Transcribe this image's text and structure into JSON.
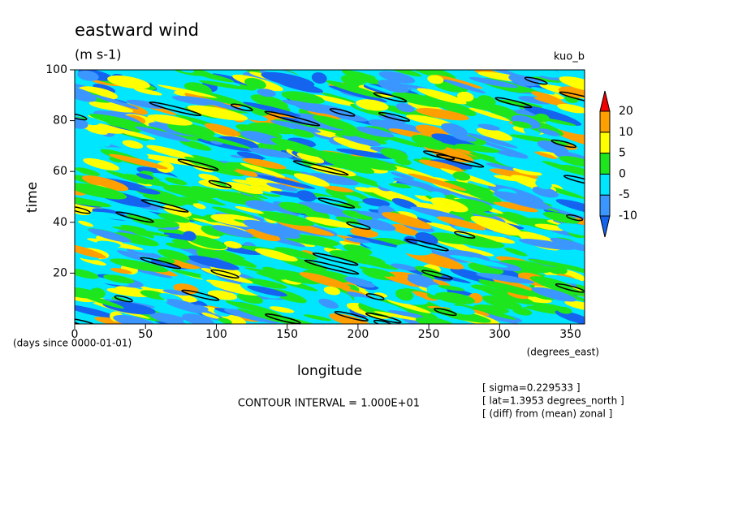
{
  "chart_data": {
    "type": "contour",
    "title": "eastward wind",
    "subtitle": "(m s-1)",
    "label_top_right": "kuo_b",
    "x_label": "longitude",
    "y_label": "time",
    "x_units": "(degrees_east)",
    "y_units": "(days since 0000-01-01)",
    "xlim": [
      0,
      360
    ],
    "xticks": [
      0,
      50,
      100,
      150,
      200,
      250,
      300,
      350
    ],
    "ylim": [
      0,
      100
    ],
    "yticks": [
      20,
      40,
      60,
      80,
      100
    ],
    "levels": [
      -10,
      -5,
      0,
      5,
      10,
      20
    ],
    "colors": [
      "#1464f0",
      "#3c96ff",
      "#00e6ff",
      "#1ee61e",
      "#ffff00",
      "#ffa000",
      "#f00000"
    ],
    "annotation": "CONTOUR INTERVAL = 1.000E+01",
    "notes": [
      "[ sigma=0.229533 ]",
      "[ lat=1.3953 degrees_north ]",
      "[ (diff) from (mean) zonal ]"
    ]
  }
}
